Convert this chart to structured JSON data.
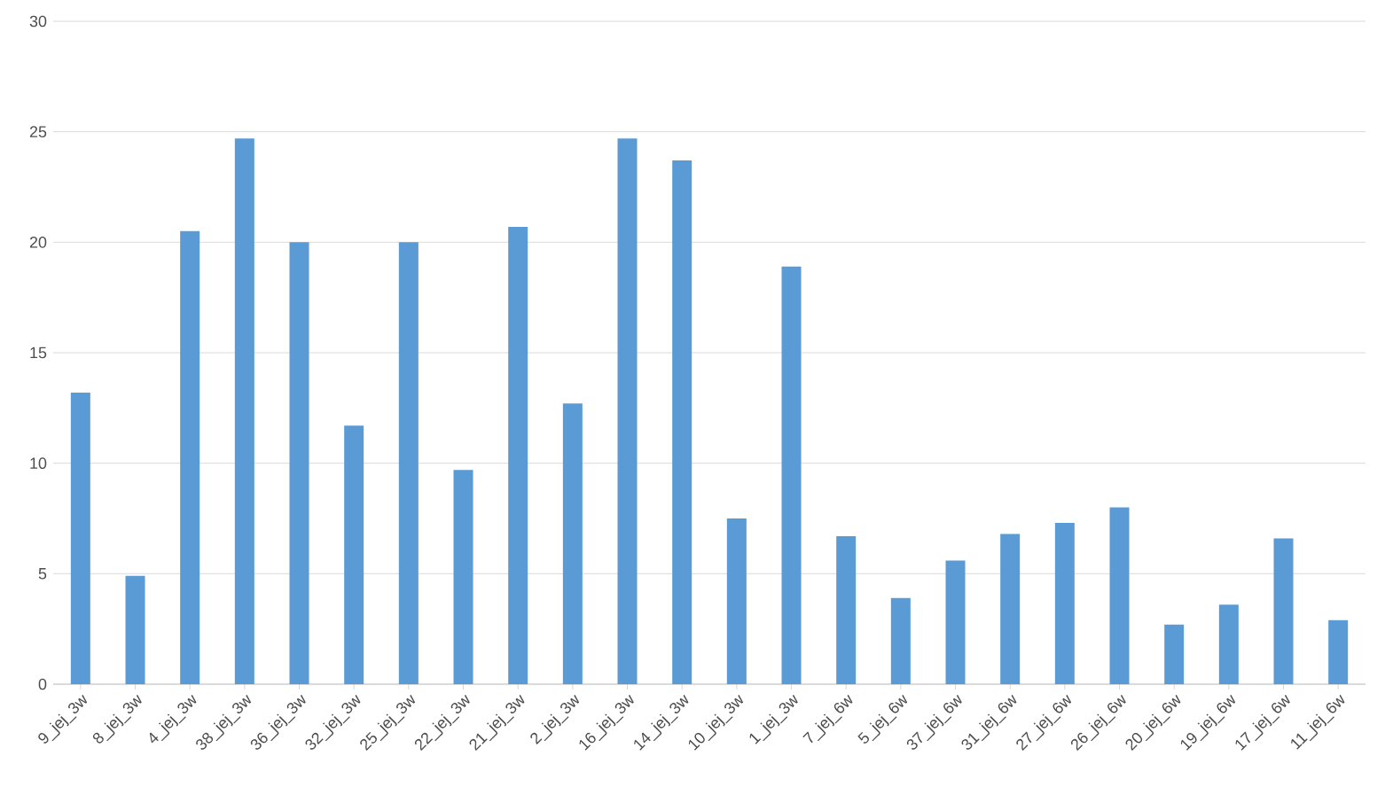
{
  "chart_data": {
    "type": "bar",
    "categories": [
      "9_jej_3w",
      "8_jej_3w",
      "4_jej_3w",
      "38_jej_3w",
      "36_jej_3w",
      "32_jej_3w",
      "25_jej_3w",
      "22_jej_3w",
      "21_jej_3w",
      "2_jej_3w",
      "16_jej_3w",
      "14_jej_3w",
      "10_jej_3w",
      "1_jej_3w",
      "7_jej_6w",
      "5_jej_6w",
      "37_jej_6w",
      "31_jej_6w",
      "27_jej_6w",
      "26_jej_6w",
      "20_jej_6w",
      "19_jej_6w",
      "17_jej_6w",
      "11_jej_6w"
    ],
    "values": [
      13.2,
      4.9,
      20.5,
      24.7,
      20.0,
      11.7,
      20.0,
      9.7,
      20.7,
      12.7,
      24.7,
      23.7,
      7.5,
      18.9,
      6.7,
      3.9,
      5.6,
      6.8,
      7.3,
      8.0,
      2.7,
      3.6,
      6.6,
      2.9
    ],
    "color": "#5b9bd5",
    "ylim": [
      0,
      30
    ],
    "yticks": [
      0,
      5,
      10,
      15,
      20,
      25,
      30
    ],
    "grid": "y"
  }
}
